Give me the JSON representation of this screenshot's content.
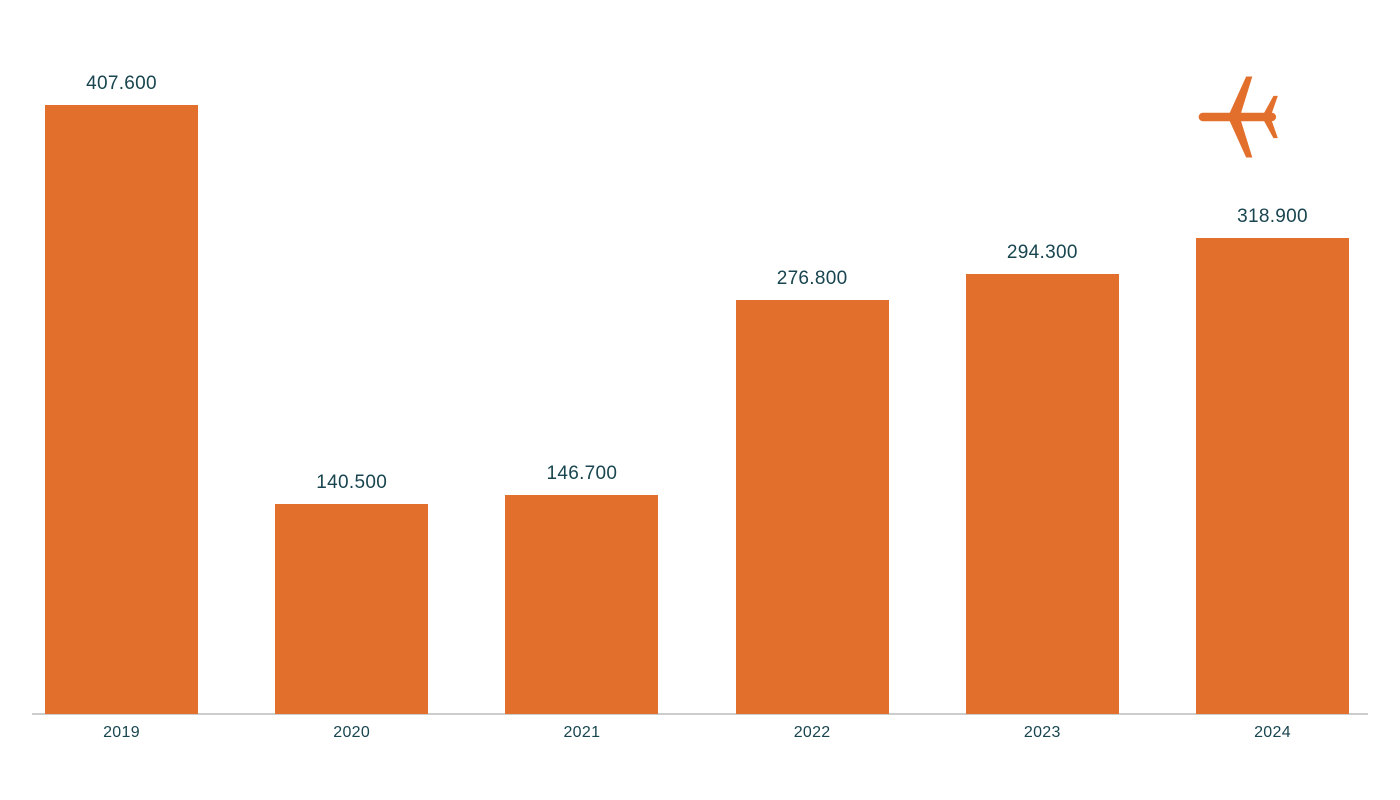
{
  "chart_data": {
    "type": "bar",
    "categories": [
      "2019",
      "2020",
      "2021",
      "2022",
      "2023",
      "2024"
    ],
    "values": [
      407600,
      140500,
      146700,
      276800,
      294300,
      318900
    ],
    "value_labels": [
      "407.600",
      "140.500",
      "146.700",
      "276.800",
      "294.300",
      "318.900"
    ],
    "title": "",
    "xlabel": "",
    "ylabel": "",
    "ylim": [
      0,
      420000
    ],
    "grid": false,
    "legend": "none",
    "bar_color": "#e2702c",
    "label_color": "#18454f",
    "axis_color": "#cccccc"
  },
  "decor": {
    "airplane_icon": "airplane",
    "airplane_color": "#e2702c"
  }
}
